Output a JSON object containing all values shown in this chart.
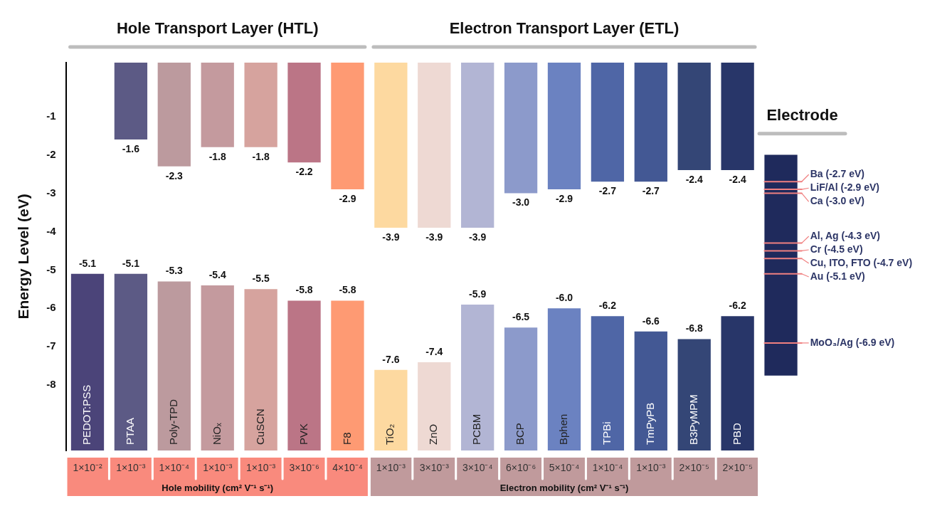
{
  "chart_data": {
    "type": "bar",
    "ylabel": "Energy Level (eV)",
    "categories": [
      "PEDOT:PSS",
      "PTAA",
      "Poly-TPD",
      "NiOₓ",
      "CuSCN",
      "PVK",
      "F8",
      "TiO₂",
      "ZnO",
      "PCBM",
      "BCP",
      "Bphen",
      "TPBi",
      "TmPyPB",
      "B3PyMPM",
      "PBD",
      null
    ],
    "ylim": [
      -9.7,
      0.4
    ],
    "yticks": [
      -1,
      -2,
      -3,
      -4,
      -5,
      -6,
      -7,
      -8
    ],
    "series": [
      {
        "colors": [
          "#4b4479",
          "#5c5a85",
          "#bc9a9e",
          "#c49a9e",
          "#d6a39e",
          "#bb7586",
          "#fe9a73",
          "#fdd9a0",
          "#eed9d3",
          "#b2b5d4",
          "#8c9acb",
          "#6b82c1",
          "#4f66a6",
          "#435894",
          "#344676",
          "#283669",
          "#1f2a5c"
        ],
        "base": [
          null,
          0.4,
          0.4,
          0.4,
          0.4,
          0.4,
          0.4,
          0.4,
          0.4,
          0.4,
          0.4,
          0.4,
          0.4,
          0.4,
          0.4,
          0.4,
          null
        ],
        "values": [
          null,
          -2.0,
          -2.7,
          -2.2,
          -2.2,
          -2.6,
          -3.3,
          -4.3,
          -4.3,
          -4.3,
          -3.4,
          -3.3,
          -3.1,
          -3.1,
          -2.8,
          -2.8,
          null
        ],
        "value_labels": [
          null,
          "-1.6",
          "-2.3",
          "-1.8",
          "-1.8",
          "-2.2",
          "-2.9",
          "-3.9",
          "-3.9",
          "-3.9",
          "-3.0",
          "-2.9",
          "-2.7",
          "-2.7",
          "-2.4",
          "-2.4",
          null
        ]
      },
      {
        "colors": [
          "#4b4479",
          "#5c5a85",
          "#bc9a9e",
          "#c49a9e",
          "#d6a39e",
          "#bb7586",
          "#fe9a73",
          "#fdd9a0",
          "#eed9d3",
          "#b2b5d4",
          "#8c9acb",
          "#6b82c1",
          "#4f66a6",
          "#435894",
          "#344676",
          "#283669",
          "#1f2a5c"
        ],
        "base": [
          -9.7,
          -9.7,
          -9.7,
          -9.7,
          -9.7,
          -9.7,
          -9.7,
          -9.7,
          -9.7,
          -9.7,
          -9.7,
          -9.7,
          -9.7,
          -9.7,
          -9.7,
          -9.7,
          -7.75
        ],
        "values": [
          4.6,
          4.6,
          4.4,
          4.3,
          4.2,
          3.9,
          3.9,
          2.1,
          2.3,
          3.8,
          3.2,
          3.7,
          3.5,
          3.1,
          2.9,
          3.5,
          5.75
        ],
        "value_labels": [
          "-5.1",
          "-5.1",
          "-5.3",
          "-5.4",
          "-5.5",
          "-5.8",
          "-5.8",
          "-7.6",
          "-7.4",
          "-5.9",
          "-6.5",
          "-6.0",
          "-6.2",
          "-6.6",
          "-6.8",
          "-6.2",
          null
        ]
      }
    ],
    "annotations": [
      "Hole Transport Layer (HTL)",
      "Electron Transport Layer (ETL)",
      "Electrode",
      "Hole mobility (cm² V⁻¹ s⁻¹)",
      "Electron mobility (cm² V⁻¹ s⁻¹)",
      "1×10⁻²",
      "1×10⁻³",
      "1×10⁻⁴",
      "1×10⁻³",
      "1×10⁻³",
      "3×10⁻⁶",
      "4×10⁻⁴",
      "1×10⁻³",
      "3×10⁻³",
      "3×10⁻⁴",
      "6×10⁻⁶",
      "5×10⁻⁴",
      "1×10⁻⁴",
      "1×10⁻³",
      "2×10⁻⁵",
      "2×10⁻⁵"
    ],
    "ref_lines": [
      {
        "axis": "y",
        "value": -2.7,
        "label": "Ba (-2.7 eV)",
        "color": "#f08080"
      },
      {
        "axis": "y",
        "value": -2.9,
        "label": "LiF/Al (-2.9 eV)",
        "color": "#f08080"
      },
      {
        "axis": "y",
        "value": -3.0,
        "label": "Ca (-3.0 eV)",
        "color": "#f08080"
      },
      {
        "axis": "y",
        "value": -4.3,
        "label": "Al, Ag (-4.3 eV)",
        "color": "#f08080"
      },
      {
        "axis": "y",
        "value": -4.5,
        "label": "Cr (-4.5 eV)",
        "color": "#f08080"
      },
      {
        "axis": "y",
        "value": -4.7,
        "label": "Cu, ITO, FTO (-4.7 eV)",
        "color": "#f08080"
      },
      {
        "axis": "y",
        "value": -5.1,
        "label": "Au (-5.1 eV)",
        "color": "#f08080"
      },
      {
        "axis": "y",
        "value": -6.9,
        "label": "MoO₃/Ag (-6.9 eV)",
        "color": "#f08080"
      }
    ]
  }
}
